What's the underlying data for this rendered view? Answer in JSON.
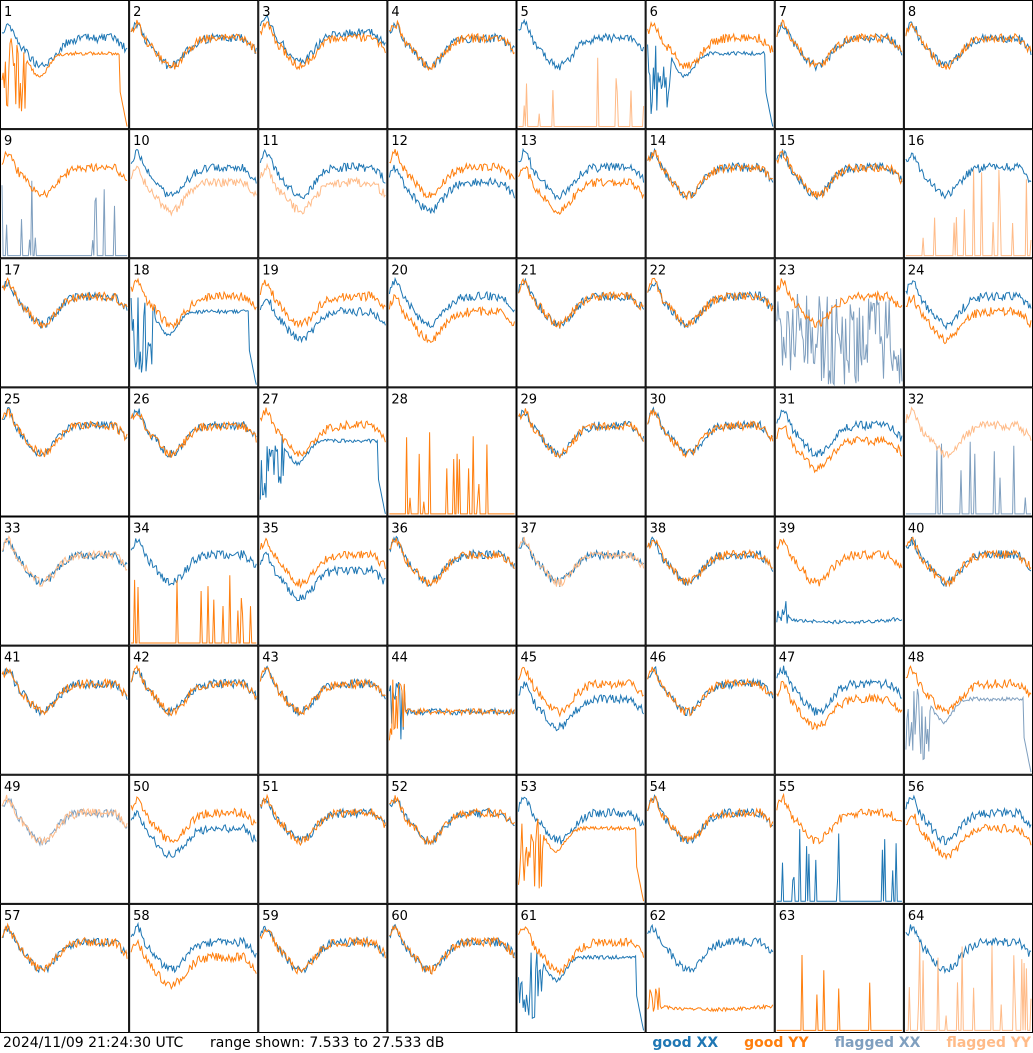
{
  "timestamp": "2024/11/09 21:24:30 UTC",
  "range_text": "range shown: 7.533 to 27.533 dB",
  "legend": {
    "good_xx": "good XX",
    "good_yy": "good YY",
    "flagged_xx": "flagged XX",
    "flagged_yy": "flagged YY"
  },
  "colors": {
    "good_xx": "#1f77b4",
    "good_yy": "#ff7f0e",
    "flagged_xx": "#7f9fbf",
    "flagged_yy": "#ffbb88"
  },
  "chart_data": {
    "type": "line",
    "grid": "8x8 small multiples",
    "y_range_db": [
      7.533,
      27.533
    ],
    "series_keys": [
      "XX",
      "YY"
    ],
    "panels": [
      {
        "id": 1,
        "xx": "good",
        "yy": "good",
        "xx_shape": "normal",
        "yy_shape": "decay_drop"
      },
      {
        "id": 2,
        "xx": "good",
        "yy": "good",
        "xx_shape": "normal",
        "yy_shape": "normal"
      },
      {
        "id": 3,
        "xx": "good",
        "yy": "good",
        "xx_shape": "normal_high",
        "yy_shape": "normal"
      },
      {
        "id": 4,
        "xx": "good",
        "yy": "good",
        "xx_shape": "normal",
        "yy_shape": "normal"
      },
      {
        "id": 5,
        "xx": "good",
        "yy": "flagged",
        "xx_shape": "normal",
        "yy_shape": "spiky_low"
      },
      {
        "id": 6,
        "xx": "good",
        "yy": "good",
        "xx_shape": "decay_drop",
        "yy_shape": "normal"
      },
      {
        "id": 7,
        "xx": "good",
        "yy": "good",
        "xx_shape": "normal",
        "yy_shape": "normal"
      },
      {
        "id": 8,
        "xx": "good",
        "yy": "good",
        "xx_shape": "normal",
        "yy_shape": "normal"
      },
      {
        "id": 9,
        "xx": "flagged",
        "yy": "good",
        "xx_shape": "spiky_low",
        "yy_shape": "normal"
      },
      {
        "id": 10,
        "xx": "good",
        "yy": "flagged",
        "xx_shape": "normal",
        "yy_shape": "normal_low"
      },
      {
        "id": 11,
        "xx": "good",
        "yy": "flagged",
        "xx_shape": "normal",
        "yy_shape": "normal_low"
      },
      {
        "id": 12,
        "xx": "good",
        "yy": "good",
        "xx_shape": "normal_low",
        "yy_shape": "normal"
      },
      {
        "id": 13,
        "xx": "good",
        "yy": "good",
        "xx_shape": "normal",
        "yy_shape": "normal_low"
      },
      {
        "id": 14,
        "xx": "good",
        "yy": "good",
        "xx_shape": "normal",
        "yy_shape": "normal"
      },
      {
        "id": 15,
        "xx": "good",
        "yy": "good",
        "xx_shape": "normal",
        "yy_shape": "normal"
      },
      {
        "id": 16,
        "xx": "good",
        "yy": "flagged",
        "xx_shape": "normal",
        "yy_shape": "spiky_low"
      },
      {
        "id": 17,
        "xx": "good",
        "yy": "good",
        "xx_shape": "normal",
        "yy_shape": "normal"
      },
      {
        "id": 18,
        "xx": "good",
        "yy": "good",
        "xx_shape": "decay_drop",
        "yy_shape": "normal"
      },
      {
        "id": 19,
        "xx": "good",
        "yy": "good",
        "xx_shape": "normal_low",
        "yy_shape": "normal"
      },
      {
        "id": 20,
        "xx": "good",
        "yy": "good",
        "xx_shape": "normal",
        "yy_shape": "normal_low"
      },
      {
        "id": 21,
        "xx": "good",
        "yy": "good",
        "xx_shape": "normal",
        "yy_shape": "normal"
      },
      {
        "id": 22,
        "xx": "good",
        "yy": "good",
        "xx_shape": "normal",
        "yy_shape": "normal"
      },
      {
        "id": 23,
        "xx": "flagged",
        "yy": "good",
        "xx_shape": "noisy",
        "yy_shape": "normal"
      },
      {
        "id": 24,
        "xx": "good",
        "yy": "good",
        "xx_shape": "normal",
        "yy_shape": "normal_low"
      },
      {
        "id": 25,
        "xx": "good",
        "yy": "good",
        "xx_shape": "normal",
        "yy_shape": "normal"
      },
      {
        "id": 26,
        "xx": "good",
        "yy": "good",
        "xx_shape": "normal",
        "yy_shape": "normal"
      },
      {
        "id": 27,
        "xx": "good",
        "yy": "good",
        "xx_shape": "decay_drop",
        "yy_shape": "normal"
      },
      {
        "id": 28,
        "xx": "good",
        "yy": "good",
        "xx_shape": "none",
        "yy_shape": "spiky_low"
      },
      {
        "id": 29,
        "xx": "good",
        "yy": "good",
        "xx_shape": "normal",
        "yy_shape": "normal"
      },
      {
        "id": 30,
        "xx": "good",
        "yy": "good",
        "xx_shape": "normal",
        "yy_shape": "normal"
      },
      {
        "id": 31,
        "xx": "good",
        "yy": "good",
        "xx_shape": "normal",
        "yy_shape": "normal_low"
      },
      {
        "id": 32,
        "xx": "flagged",
        "yy": "flagged",
        "xx_shape": "spiky_low",
        "yy_shape": "normal"
      },
      {
        "id": 33,
        "xx": "good",
        "yy": "flagged",
        "xx_shape": "normal",
        "yy_shape": "normal"
      },
      {
        "id": 34,
        "xx": "good",
        "yy": "good",
        "xx_shape": "normal",
        "yy_shape": "spiky_low"
      },
      {
        "id": 35,
        "xx": "good",
        "yy": "good",
        "xx_shape": "normal_low",
        "yy_shape": "normal"
      },
      {
        "id": 36,
        "xx": "good",
        "yy": "good",
        "xx_shape": "normal",
        "yy_shape": "normal"
      },
      {
        "id": 37,
        "xx": "good",
        "yy": "flagged",
        "xx_shape": "normal",
        "yy_shape": "normal"
      },
      {
        "id": 38,
        "xx": "good",
        "yy": "good",
        "xx_shape": "normal",
        "yy_shape": "normal"
      },
      {
        "id": 39,
        "xx": "good",
        "yy": "good",
        "xx_shape": "flat_low",
        "yy_shape": "normal"
      },
      {
        "id": 40,
        "xx": "good",
        "yy": "good",
        "xx_shape": "normal",
        "yy_shape": "normal"
      },
      {
        "id": 41,
        "xx": "good",
        "yy": "good",
        "xx_shape": "normal",
        "yy_shape": "normal"
      },
      {
        "id": 42,
        "xx": "good",
        "yy": "good",
        "xx_shape": "normal",
        "yy_shape": "normal"
      },
      {
        "id": 43,
        "xx": "good",
        "yy": "good",
        "xx_shape": "normal",
        "yy_shape": "normal"
      },
      {
        "id": 44,
        "xx": "good",
        "yy": "good",
        "xx_shape": "flat_mid",
        "yy_shape": "flat_mid"
      },
      {
        "id": 45,
        "xx": "good",
        "yy": "good",
        "xx_shape": "normal_low",
        "yy_shape": "normal"
      },
      {
        "id": 46,
        "xx": "good",
        "yy": "good",
        "xx_shape": "normal",
        "yy_shape": "normal"
      },
      {
        "id": 47,
        "xx": "good",
        "yy": "good",
        "xx_shape": "normal",
        "yy_shape": "normal_low"
      },
      {
        "id": 48,
        "xx": "flagged",
        "yy": "good",
        "xx_shape": "decay_drop",
        "yy_shape": "normal"
      },
      {
        "id": 49,
        "xx": "flagged",
        "yy": "flagged",
        "xx_shape": "normal",
        "yy_shape": "normal"
      },
      {
        "id": 50,
        "xx": "good",
        "yy": "good",
        "xx_shape": "normal_low",
        "yy_shape": "normal"
      },
      {
        "id": 51,
        "xx": "good",
        "yy": "good",
        "xx_shape": "normal",
        "yy_shape": "normal"
      },
      {
        "id": 52,
        "xx": "good",
        "yy": "good",
        "xx_shape": "normal",
        "yy_shape": "normal"
      },
      {
        "id": 53,
        "xx": "good",
        "yy": "good",
        "xx_shape": "normal",
        "yy_shape": "decay_drop"
      },
      {
        "id": 54,
        "xx": "good",
        "yy": "good",
        "xx_shape": "normal",
        "yy_shape": "normal"
      },
      {
        "id": 55,
        "xx": "good",
        "yy": "good",
        "xx_shape": "spiky_low",
        "yy_shape": "normal"
      },
      {
        "id": 56,
        "xx": "good",
        "yy": "good",
        "xx_shape": "normal",
        "yy_shape": "normal_low"
      },
      {
        "id": 57,
        "xx": "good",
        "yy": "good",
        "xx_shape": "normal",
        "yy_shape": "normal"
      },
      {
        "id": 58,
        "xx": "good",
        "yy": "good",
        "xx_shape": "normal",
        "yy_shape": "normal_low"
      },
      {
        "id": 59,
        "xx": "good",
        "yy": "good",
        "xx_shape": "normal",
        "yy_shape": "normal"
      },
      {
        "id": 60,
        "xx": "good",
        "yy": "good",
        "xx_shape": "normal",
        "yy_shape": "normal"
      },
      {
        "id": 61,
        "xx": "good",
        "yy": "good",
        "xx_shape": "decay_drop",
        "yy_shape": "normal"
      },
      {
        "id": 62,
        "xx": "good",
        "yy": "good",
        "xx_shape": "normal",
        "yy_shape": "flat_low"
      },
      {
        "id": 63,
        "xx": "good",
        "yy": "good",
        "xx_shape": "none",
        "yy_shape": "spiky_low"
      },
      {
        "id": 64,
        "xx": "good",
        "yy": "flagged",
        "xx_shape": "normal",
        "yy_shape": "spiky_low"
      }
    ]
  }
}
